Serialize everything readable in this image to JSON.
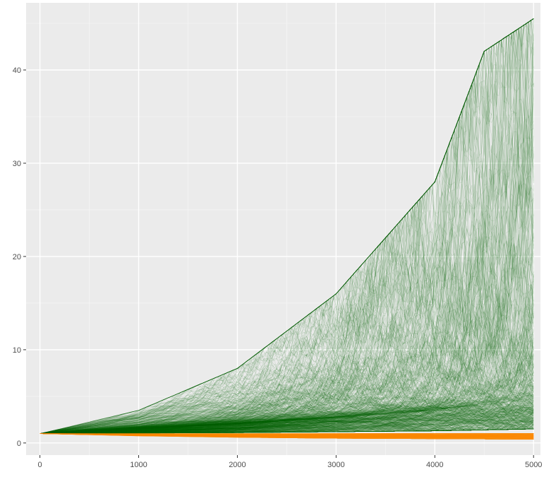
{
  "chart_data": {
    "type": "line",
    "title": "",
    "xlabel": "",
    "ylabel": "",
    "xlim": [
      -140,
      5070
    ],
    "ylim": [
      -1.3,
      47.2
    ],
    "x_ticks": [
      0,
      1000,
      2000,
      3000,
      4000,
      5000
    ],
    "x_tick_labels": [
      "0",
      "1000",
      "2000",
      "3000",
      "4000",
      "5000"
    ],
    "y_ticks": [
      0,
      10,
      20,
      30,
      40
    ],
    "y_tick_labels": [
      "0",
      "10",
      "20",
      "30",
      "40"
    ],
    "x_minor_ticks": [
      500,
      1500,
      2500,
      3500,
      4500
    ],
    "y_minor_ticks": [
      5,
      15,
      25,
      35,
      45
    ],
    "grid": true,
    "legend": "none",
    "n_steps": 5000,
    "start_value": 1,
    "colors": {
      "panel_background": "#ebebeb",
      "grid_major": "#ffffff",
      "grid_minor": "#f5f5f5",
      "tick_text": "#4d4d4d",
      "series_growth": "#006400",
      "series_decline": "#ff8c00"
    },
    "series": [
      {
        "group": "growth",
        "color": "#006400",
        "count": 800,
        "x": [
          0,
          1000,
          2000,
          3000,
          4000,
          4500,
          5000
        ],
        "median": [
          1,
          1.5,
          2.0,
          2.6,
          3.3,
          3.8,
          4.3
        ],
        "upper_envelope": [
          1,
          3.5,
          8.0,
          16,
          28,
          42,
          45.5
        ],
        "lower_envelope": [
          1,
          1.05,
          1.1,
          1.2,
          1.3,
          1.4,
          1.5
        ]
      },
      {
        "group": "decline",
        "color": "#ff8c00",
        "count": 250,
        "x": [
          0,
          1000,
          2000,
          3000,
          4000,
          5000
        ],
        "median": [
          1,
          0.95,
          0.9,
          0.85,
          0.8,
          0.75
        ],
        "upper_envelope": [
          1,
          1.0,
          1.0,
          1.0,
          1.0,
          1.0
        ],
        "lower_envelope": [
          1,
          0.75,
          0.6,
          0.5,
          0.45,
          0.4
        ]
      }
    ]
  }
}
